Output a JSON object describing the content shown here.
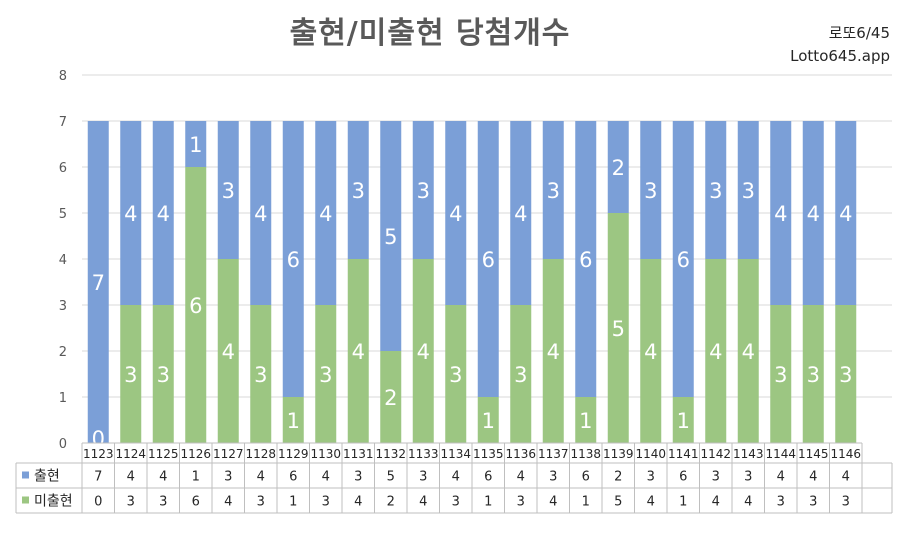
{
  "header": {
    "title": "출현/미출현 당첨개수",
    "corner_line1": "로또6/45",
    "corner_line2": "Lotto645.app"
  },
  "chart_data": {
    "type": "bar",
    "stacked": true,
    "categories": [
      "1123",
      "1124",
      "1125",
      "1126",
      "1127",
      "1128",
      "1129",
      "1130",
      "1131",
      "1132",
      "1133",
      "1134",
      "1135",
      "1136",
      "1137",
      "1138",
      "1139",
      "1140",
      "1141",
      "1142",
      "1143",
      "1144",
      "1145",
      "1146"
    ],
    "series": [
      {
        "name": "미출현",
        "color": "#9cc682",
        "values": [
          0,
          3,
          3,
          6,
          4,
          3,
          1,
          3,
          4,
          2,
          4,
          3,
          1,
          3,
          4,
          1,
          5,
          4,
          1,
          4,
          4,
          3,
          3,
          3
        ]
      },
      {
        "name": "출현",
        "color": "#7b9fd7",
        "values": [
          7,
          4,
          4,
          1,
          3,
          4,
          6,
          4,
          3,
          5,
          3,
          4,
          6,
          4,
          3,
          6,
          2,
          3,
          6,
          3,
          3,
          4,
          4,
          4
        ]
      }
    ],
    "ylim": [
      0,
      8
    ],
    "yticks": [
      "0",
      "1",
      "2",
      "3",
      "4",
      "5",
      "6",
      "7",
      "8"
    ],
    "grid": true,
    "data_table": true
  }
}
